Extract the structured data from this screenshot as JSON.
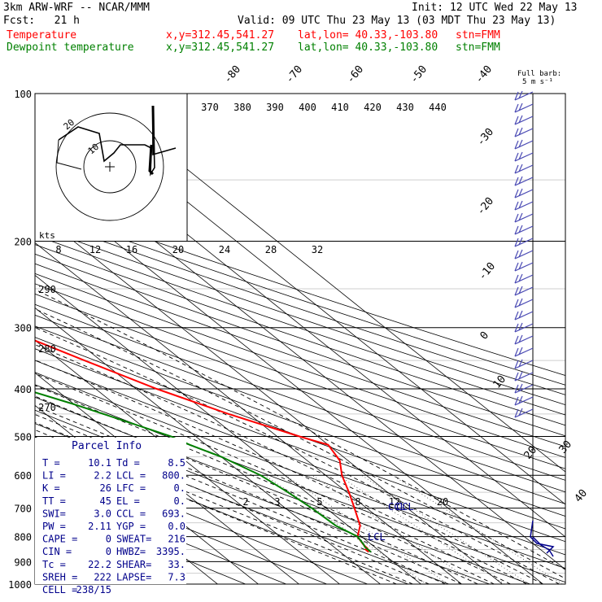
{
  "header": {
    "model": "3km ARW-WRF -- NCAR/MMM",
    "init": "Init: 12 UTC Wed 22 May 13",
    "fcst": "Fcst:   21 h",
    "valid": "Valid: 09 UTC Thu 23 May 13 (03 MDT Thu 23 May 13)"
  },
  "legend": [
    {
      "name": "Temperature",
      "xy": "x,y=312.45,541.27",
      "latlon": "lat,lon= 40.33,-103.80",
      "stn": "stn=FMM",
      "color": "#ff0000"
    },
    {
      "name": "Dewpoint temperature",
      "xy": "x,y=312.45,541.27",
      "latlon": "lat,lon= 40.33,-103.80",
      "stn": "stn=FMM",
      "color": "#008000"
    }
  ],
  "barb_note": [
    "Full barb:",
    "5 m s⁻¹"
  ],
  "chart_data": {
    "type": "line",
    "title": "",
    "ylabel": "",
    "pressure_levels": [
      100,
      200,
      300,
      400,
      500,
      600,
      700,
      800,
      900,
      1000
    ],
    "isotherm_labels": [
      "-80",
      "-70",
      "-60",
      "-50",
      "-40",
      "-30",
      "-20",
      "-10",
      "0",
      "10",
      "20",
      "30",
      "40"
    ],
    "theta_labels": [
      "370",
      "380",
      "390",
      "400",
      "410",
      "420",
      "430",
      "440"
    ],
    "theta_low_labels": [
      "290",
      "280",
      "270"
    ],
    "wind_speed_labels": [
      "8",
      "12",
      "16",
      "20",
      "24",
      "28",
      "32"
    ],
    "mixing_ratio_labels": [
      "2",
      "3",
      "5",
      "8",
      "12",
      "20"
    ],
    "series": [
      {
        "name": "Temperature",
        "color": "#ff0000",
        "x": [
          -13.0,
          -13.0,
          -12.2,
          -12.0,
          -11.0,
          -7.0,
          -3.0,
          0.5,
          4.0,
          8.0,
          10.0,
          5.5,
          -5.0,
          -15.0,
          -24.0,
          -34.0,
          -43.0,
          -53.0,
          -57.0,
          -59.0,
          -57.0,
          -53.0,
          -48.5,
          -45.0,
          -44.0
        ],
        "y": [
          860,
          850,
          845,
          830,
          800,
          760,
          700,
          650,
          600,
          560,
          520,
          500,
          450,
          400,
          350,
          300,
          260,
          220,
          210,
          200,
          190,
          180,
          150,
          125,
          100
        ]
      },
      {
        "name": "Dewpoint temperature",
        "color": "#008000",
        "x": [
          -12.4,
          -12.4,
          -11.9,
          -11.0,
          -13.0,
          -13.5,
          -14.5,
          -16.0,
          -20.0,
          -24.0,
          -26.0,
          -40.0,
          -62.0,
          -60.0,
          -60.0,
          -62.0,
          -66.0,
          -69.0,
          -68.0,
          -69.0,
          -70.0,
          -72.0,
          -74.0,
          -75.0
        ],
        "y": [
          860,
          840,
          830,
          800,
          760,
          700,
          650,
          600,
          550,
          520,
          500,
          430,
          350,
          320,
          300,
          270,
          240,
          210,
          200,
          185,
          165,
          140,
          115,
          100
        ]
      }
    ],
    "annotations": [
      "LCL",
      "CCL"
    ],
    "hodograph": {
      "units": "kts",
      "ring_labels": [
        "10",
        "20"
      ]
    }
  },
  "parcel_info": {
    "title": "Parcel Info",
    "rows": [
      [
        "T  =",
        "10.1",
        "Td =",
        "8.5"
      ],
      [
        "LI =",
        "2.2",
        "LCL =",
        "800."
      ],
      [
        "K  =",
        "26",
        "LFC =",
        "0."
      ],
      [
        "TT =",
        "45",
        "EL  =",
        "0."
      ],
      [
        "SWI=",
        "3.0",
        "CCL =",
        "693."
      ],
      [
        "PW =",
        "2.11",
        "YGP =",
        "0.0"
      ],
      [
        "CAPE =",
        "0",
        "SWEAT=",
        "216"
      ],
      [
        "CIN  =",
        "0",
        "HWBZ=",
        "3395."
      ],
      [
        "Tc  =",
        "22.2",
        "SHEAR=",
        "33."
      ],
      [
        "SREH =",
        "222",
        "LAPSE=",
        "7.3"
      ],
      [
        "CELL =",
        "238/15",
        "",
        ""
      ]
    ],
    "color": "#00008b"
  }
}
